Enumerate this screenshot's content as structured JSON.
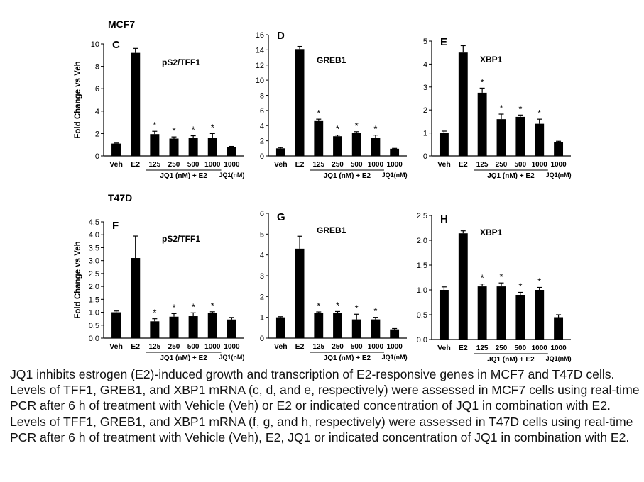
{
  "groups": [
    {
      "label": "MCF7"
    },
    {
      "label": "T47D"
    }
  ],
  "chart_data": [
    {
      "type": "bar",
      "group": "MCF7",
      "panel": "C",
      "title": "pS2/TFF1",
      "ylabel": "Fold Change vs Veh",
      "ylim": [
        0,
        10
      ],
      "yticks": [
        "0",
        "2",
        "4",
        "6",
        "8",
        "10"
      ],
      "categories": [
        "Veh",
        "E2",
        "125",
        "250",
        "500",
        "1000",
        "1000"
      ],
      "values": [
        1.1,
        9.2,
        1.95,
        1.55,
        1.6,
        1.6,
        0.8
      ],
      "errors": [
        0.05,
        0.4,
        0.25,
        0.15,
        0.2,
        0.4,
        0.05
      ],
      "significant": [
        false,
        false,
        true,
        true,
        true,
        true,
        false
      ],
      "bracket_label": "JQ1 (nM) + E2",
      "last_label": "JQ1(nM)"
    },
    {
      "type": "bar",
      "group": "MCF7",
      "panel": "D",
      "title": "GREB1",
      "ylabel": "",
      "ylim": [
        0,
        16
      ],
      "yticks": [
        "0",
        "2",
        "4",
        "6",
        "8",
        "10",
        "12",
        "14",
        "16"
      ],
      "categories": [
        "Veh",
        "E2",
        "125",
        "250",
        "500",
        "1000",
        "1000"
      ],
      "values": [
        1.0,
        14.1,
        4.6,
        2.6,
        3.0,
        2.4,
        0.95
      ],
      "errors": [
        0.1,
        0.35,
        0.25,
        0.15,
        0.2,
        0.35,
        0.05
      ],
      "significant": [
        false,
        false,
        true,
        true,
        true,
        true,
        false
      ],
      "bracket_label": "JQ1 (nM) + E2",
      "last_label": "JQ1(nM)"
    },
    {
      "type": "bar",
      "group": "MCF7",
      "panel": "E",
      "title": "XBP1",
      "ylabel": "",
      "ylim": [
        0,
        5
      ],
      "yticks": [
        "0",
        "1",
        "2",
        "3",
        "4",
        "5"
      ],
      "categories": [
        "Veh",
        "E2",
        "125",
        "250",
        "500",
        "1000",
        "1000"
      ],
      "values": [
        1.0,
        4.5,
        2.75,
        1.6,
        1.7,
        1.4,
        0.6
      ],
      "errors": [
        0.08,
        0.3,
        0.2,
        0.22,
        0.08,
        0.2,
        0.04
      ],
      "significant": [
        false,
        false,
        true,
        true,
        true,
        true,
        false
      ],
      "bracket_label": "JQ1 (nM) + E2",
      "last_label": "JQ1(nM)"
    },
    {
      "type": "bar",
      "group": "T47D",
      "panel": "F",
      "title": "pS2/TFF1",
      "ylabel": "Fold Change vs Veh",
      "ylim": [
        0,
        4.5
      ],
      "yticks": [
        "0.0",
        "0.5",
        "1.0",
        "1.5",
        "2.0",
        "2.5",
        "3.0",
        "3.5",
        "4.0",
        "4.5"
      ],
      "categories": [
        "Veh",
        "E2",
        "125",
        "250",
        "500",
        "1000",
        "1000"
      ],
      "values": [
        1.0,
        3.1,
        0.65,
        0.83,
        0.85,
        0.97,
        0.72
      ],
      "errors": [
        0.05,
        0.85,
        0.1,
        0.12,
        0.13,
        0.05,
        0.08
      ],
      "significant": [
        false,
        false,
        true,
        true,
        true,
        true,
        false
      ],
      "bracket_label": "JQ1 (nM) + E2",
      "last_label": "JQ1(nM)"
    },
    {
      "type": "bar",
      "group": "T47D",
      "panel": "G",
      "title": "GREB1",
      "ylabel": "",
      "ylim": [
        0,
        6
      ],
      "yticks": [
        "0",
        "1",
        "2",
        "3",
        "4",
        "5",
        "6"
      ],
      "categories": [
        "Veh",
        "E2",
        "125",
        "250",
        "500",
        "1000",
        "1000"
      ],
      "values": [
        1.0,
        4.3,
        1.2,
        1.2,
        0.9,
        0.9,
        0.42
      ],
      "errors": [
        0.03,
        0.6,
        0.06,
        0.08,
        0.25,
        0.1,
        0.04
      ],
      "significant": [
        false,
        false,
        true,
        true,
        true,
        true,
        false
      ],
      "bracket_label": "JQ1 (nM) + E2",
      "last_label": "JQ1(nM)"
    },
    {
      "type": "bar",
      "group": "T47D",
      "panel": "H",
      "title": "XBP1",
      "ylabel": "",
      "ylim": [
        0,
        2.5
      ],
      "yticks": [
        "0.0",
        "0.5",
        "1.0",
        "1.5",
        "2.0",
        "2.5"
      ],
      "categories": [
        "Veh",
        "E2",
        "125",
        "250",
        "500",
        "1000",
        "1000"
      ],
      "values": [
        1.0,
        2.14,
        1.07,
        1.07,
        0.9,
        1.0,
        0.45
      ],
      "errors": [
        0.06,
        0.05,
        0.05,
        0.07,
        0.05,
        0.05,
        0.05
      ],
      "significant": [
        false,
        false,
        true,
        true,
        true,
        true,
        false
      ],
      "bracket_label": "JQ1 (nM) + E2",
      "last_label": "JQ1(nM)"
    }
  ],
  "caption": "JQ1 inhibits estrogen (E2)-induced growth and transcription of E2-responsive genes in MCF7 and T47D cells. Levels of TFF1, GREB1, and XBP1 mRNA (c, d, and e, respectively) were assessed in MCF7 cells using real-time PCR after 6 h of treatment with Vehicle (Veh) or E2 or indicated concentration of JQ1 in combination with E2. Levels of TFF1, GREB1, and XBP1 mRNA (f, g, and h, respectively) were assessed in T47D cells using real-time PCR after 6 h of treatment with Vehicle (Veh), E2, JQ1 or indicated concentration of JQ1 in combination with E2."
}
